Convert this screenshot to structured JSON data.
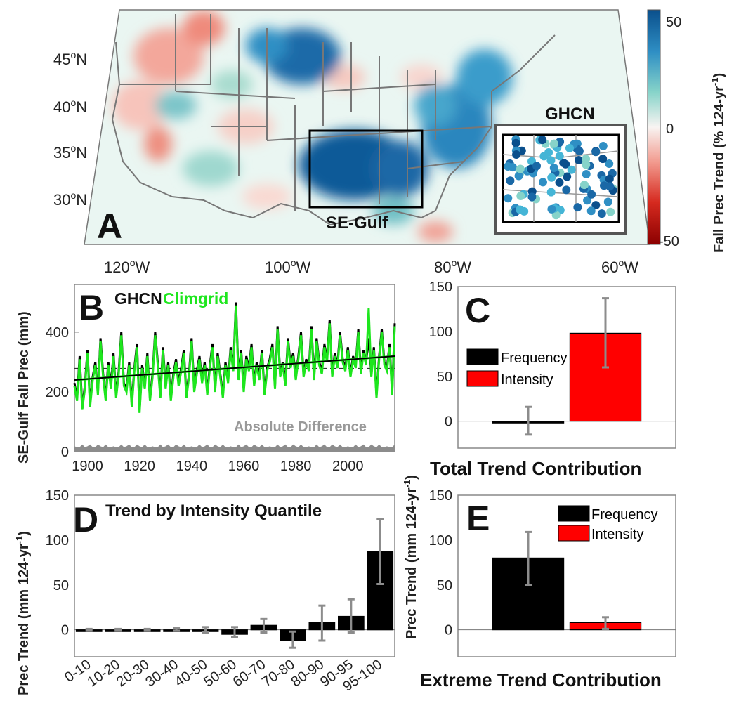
{
  "panel_a": {
    "letter": "A",
    "lat_labels": [
      "45",
      "40",
      "35",
      "30"
    ],
    "lat_suffix": "N",
    "lon_labels": [
      "120",
      "100",
      "80",
      "60"
    ],
    "lon_suffix": "W",
    "deg": "o",
    "box_label": "SE-Gulf",
    "inset_label": "GHCN",
    "colorbar": {
      "title": "Fall Prec Trend (% 124-yr",
      "title_sup": "-1",
      "title_end": ")",
      "ticks": [
        "50",
        "0",
        "-50"
      ],
      "colors": [
        "#0a4f8c",
        "#2f8fc4",
        "#86d3c9",
        "#f8f4f2",
        "#f29a8e",
        "#d62a1f",
        "#8b0000"
      ]
    }
  },
  "chart_data": [
    {
      "panel": "B",
      "type": "line",
      "ylabel": "SE-Gulf Fall Prec (mm)",
      "legend": [
        "GHCN",
        "Climgrid"
      ],
      "annotation": "Absolute Difference",
      "xlim": [
        1895,
        2018
      ],
      "ylim": [
        0,
        560
      ],
      "xticks": [
        1900,
        1920,
        1940,
        1960,
        1980,
        2000
      ],
      "yticks": [
        0,
        200,
        400
      ],
      "x": [
        1895,
        1896,
        1897,
        1898,
        1899,
        1900,
        1901,
        1902,
        1903,
        1904,
        1905,
        1906,
        1907,
        1908,
        1909,
        1910,
        1911,
        1912,
        1913,
        1914,
        1915,
        1916,
        1917,
        1918,
        1919,
        1920,
        1921,
        1922,
        1923,
        1924,
        1925,
        1926,
        1927,
        1928,
        1929,
        1930,
        1931,
        1932,
        1933,
        1934,
        1935,
        1936,
        1937,
        1938,
        1939,
        1940,
        1941,
        1942,
        1943,
        1944,
        1945,
        1946,
        1947,
        1948,
        1949,
        1950,
        1951,
        1952,
        1953,
        1954,
        1955,
        1956,
        1957,
        1958,
        1959,
        1960,
        1961,
        1962,
        1963,
        1964,
        1965,
        1966,
        1967,
        1968,
        1969,
        1970,
        1971,
        1972,
        1973,
        1974,
        1975,
        1976,
        1977,
        1978,
        1979,
        1980,
        1981,
        1982,
        1983,
        1984,
        1985,
        1986,
        1987,
        1988,
        1989,
        1990,
        1991,
        1992,
        1993,
        1994,
        1995,
        1996,
        1997,
        1998,
        1999,
        2000,
        2001,
        2002,
        2003,
        2004,
        2005,
        2006,
        2007,
        2008,
        2009,
        2010,
        2011,
        2012,
        2013,
        2014,
        2015,
        2016,
        2017,
        2018
      ],
      "series": [
        {
          "name": "GHCN",
          "color": "#000000",
          "values": [
            230,
            180,
            320,
            150,
            220,
            340,
            160,
            250,
            300,
            200,
            380,
            260,
            180,
            300,
            220,
            330,
            190,
            270,
            400,
            230,
            210,
            300,
            160,
            280,
            360,
            140,
            290,
            220,
            330,
            180,
            260,
            400,
            300,
            190,
            350,
            220,
            300,
            180,
            260,
            310,
            230,
            280,
            340,
            190,
            260,
            380,
            210,
            270,
            320,
            240,
            300,
            200,
            290,
            360,
            210,
            330,
            260,
            190,
            300,
            240,
            350,
            280,
            500,
            250,
            340,
            210,
            320,
            280,
            360,
            230,
            300,
            250,
            340,
            200,
            280,
            310,
            360,
            220,
            420,
            260,
            300,
            230,
            380,
            290,
            330,
            250,
            320,
            400,
            260,
            310,
            280,
            420,
            250,
            380,
            300,
            270,
            360,
            310,
            440,
            260,
            330,
            290,
            400,
            310,
            280,
            350,
            260,
            320,
            290,
            410,
            270,
            340,
            300,
            380,
            260,
            350,
            190,
            320,
            410,
            300,
            280,
            360,
            200,
            430
          ]
        },
        {
          "name": "Climgrid",
          "color": "#1ee61e",
          "values": [
            220,
            170,
            310,
            140,
            210,
            330,
            150,
            240,
            290,
            190,
            370,
            250,
            170,
            290,
            210,
            320,
            180,
            260,
            390,
            220,
            200,
            290,
            150,
            270,
            350,
            130,
            280,
            210,
            320,
            170,
            250,
            390,
            290,
            180,
            340,
            210,
            290,
            170,
            250,
            300,
            220,
            270,
            330,
            180,
            250,
            370,
            200,
            260,
            310,
            230,
            290,
            190,
            280,
            350,
            200,
            320,
            250,
            180,
            290,
            230,
            340,
            270,
            490,
            240,
            330,
            200,
            310,
            270,
            350,
            220,
            290,
            240,
            330,
            190,
            270,
            300,
            350,
            210,
            410,
            250,
            290,
            220,
            370,
            280,
            320,
            240,
            310,
            390,
            250,
            300,
            270,
            410,
            240,
            370,
            290,
            260,
            350,
            300,
            430,
            250,
            320,
            280,
            390,
            300,
            270,
            340,
            250,
            310,
            280,
            400,
            260,
            330,
            290,
            480,
            250,
            340,
            180,
            310,
            400,
            290,
            270,
            350,
            190,
            420
          ]
        },
        {
          "name": "Absolute Difference",
          "color": "#8c8c8c",
          "values": [
            10,
            10,
            10,
            10,
            10,
            10,
            10,
            10,
            10,
            10,
            10,
            10,
            10,
            10,
            10,
            10,
            10,
            10,
            10,
            10,
            10,
            10,
            10,
            10,
            10,
            10,
            10,
            10,
            10,
            10,
            10,
            10,
            10,
            10,
            10,
            10,
            10,
            10,
            10,
            10,
            10,
            10,
            10,
            10,
            10,
            10,
            10,
            10,
            10,
            10,
            10,
            10,
            10,
            10,
            10,
            10,
            10,
            10,
            10,
            10,
            10,
            10,
            10,
            10,
            10,
            10,
            10,
            10,
            10,
            10,
            10,
            10,
            10,
            10,
            10,
            10,
            10,
            10,
            10,
            10,
            10,
            10,
            10,
            10,
            10,
            10,
            10,
            10,
            10,
            10,
            10,
            10,
            10,
            10,
            10,
            10,
            10,
            10,
            10,
            10,
            10,
            10,
            10,
            10,
            10,
            10,
            10,
            10,
            10,
            10,
            10,
            10,
            10,
            10,
            10,
            10,
            10,
            10,
            10,
            10,
            10,
            10,
            10,
            10
          ]
        }
      ],
      "mean_line": 278,
      "trend_line": {
        "start": [
          1895,
          240
        ],
        "end": [
          2018,
          320
        ]
      }
    },
    {
      "panel": "C",
      "type": "bar",
      "xlabel": "Total Trend Contribution",
      "categories": [
        "Frequency",
        "Intensity"
      ],
      "values": [
        0,
        98
      ],
      "error": [
        [
          -15,
          16
        ],
        [
          60,
          137
        ]
      ],
      "colors": [
        "#000000",
        "#ff0000"
      ],
      "ylim": [
        -30,
        150
      ],
      "yticks": [
        0,
        50,
        100,
        150
      ],
      "legend": [
        "Frequency",
        "Intensity"
      ]
    },
    {
      "panel": "D",
      "type": "bar",
      "title": "Trend by Intensity Quantile",
      "ylabel": "Prec Trend (mm 124-yr",
      "ylabel_sup": "-1",
      "ylabel_end": ")",
      "categories": [
        "0-10",
        "10-20",
        "20-30",
        "30-40",
        "40-50",
        "50-60",
        "60-70",
        "70-80",
        "80-90",
        "90-95",
        "95-100"
      ],
      "values": [
        0,
        0,
        0,
        0,
        0,
        -5,
        5,
        -12,
        8,
        15,
        87
      ],
      "error": [
        [
          -1,
          1
        ],
        [
          -1,
          1
        ],
        [
          -1,
          1
        ],
        [
          -1,
          2
        ],
        [
          -3,
          3
        ],
        [
          -8,
          3
        ],
        [
          -3,
          12
        ],
        [
          -20,
          -2
        ],
        [
          -12,
          27
        ],
        [
          -3,
          34
        ],
        [
          51,
          123
        ]
      ],
      "ylim": [
        -30,
        150
      ],
      "yticks": [
        0,
        50,
        100,
        150
      ]
    },
    {
      "panel": "E",
      "type": "bar",
      "xlabel": "Extreme Trend Contribution",
      "ylabel": "Prec Trend",
      "categories": [
        "Frequency",
        "Intensity"
      ],
      "values": [
        80,
        8
      ],
      "error": [
        [
          50,
          109
        ],
        [
          1,
          14
        ]
      ],
      "colors": [
        "#000000",
        "#ff0000"
      ],
      "ylim": [
        -30,
        150
      ],
      "yticks": [
        0,
        50,
        100,
        150
      ],
      "legend": [
        "Frequency",
        "Intensity"
      ]
    }
  ],
  "panel_c_axis": {
    "ylabel": "Prec Trend (mm 124-yr",
    "ylabel_sup": "-1",
    "ylabel_end": ")"
  }
}
